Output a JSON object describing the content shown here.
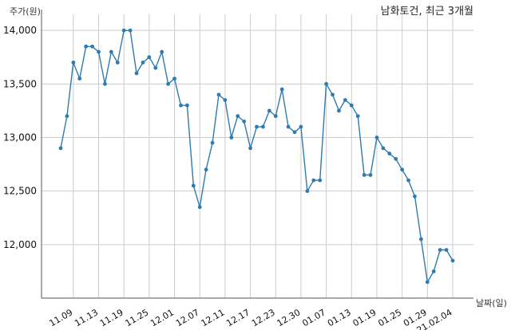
{
  "chart_data": {
    "type": "line",
    "title": "남화토건, 최근 3개월",
    "ylabel": "주가(원)",
    "xlabel": "날짜(일)",
    "ylim": [
      11500,
      14150
    ],
    "yticks": [
      12000,
      12500,
      13000,
      13500,
      14000
    ],
    "ytick_labels": [
      "12,000",
      "12,500",
      "13,000",
      "13,500",
      "14,000"
    ],
    "grid": true,
    "line_color": "#2f7bb0",
    "xticks": [
      {
        "index": 2,
        "label": "11.09"
      },
      {
        "index": 6,
        "label": "11.13"
      },
      {
        "index": 10,
        "label": "11.19"
      },
      {
        "index": 14,
        "label": "11.25"
      },
      {
        "index": 18,
        "label": "12.01"
      },
      {
        "index": 22,
        "label": "12.07"
      },
      {
        "index": 26,
        "label": "12.11"
      },
      {
        "index": 30,
        "label": "12.17"
      },
      {
        "index": 34,
        "label": "12.23"
      },
      {
        "index": 38,
        "label": "12.30"
      },
      {
        "index": 42,
        "label": "01.07"
      },
      {
        "index": 46,
        "label": "01.13"
      },
      {
        "index": 50,
        "label": "01.19"
      },
      {
        "index": 54,
        "label": "01.25"
      },
      {
        "index": 58,
        "label": "01.29"
      },
      {
        "index": 62,
        "label": "21.02.04"
      }
    ],
    "values": [
      12900,
      13200,
      13700,
      13550,
      13850,
      13850,
      13800,
      13500,
      13800,
      13700,
      14000,
      14000,
      13600,
      13700,
      13750,
      13650,
      13800,
      13500,
      13550,
      13300,
      13300,
      12550,
      12350,
      12700,
      12950,
      13400,
      13350,
      13000,
      13200,
      13150,
      12900,
      13100,
      13100,
      13250,
      13200,
      13450,
      13100,
      13050,
      13100,
      12500,
      12600,
      12600,
      13500,
      13400,
      13250,
      13350,
      13300,
      13200,
      12650,
      12650,
      13000,
      12900,
      12850,
      12800,
      12700,
      12600,
      12450,
      12050,
      11650,
      11750,
      11950,
      11950,
      11850
    ]
  }
}
